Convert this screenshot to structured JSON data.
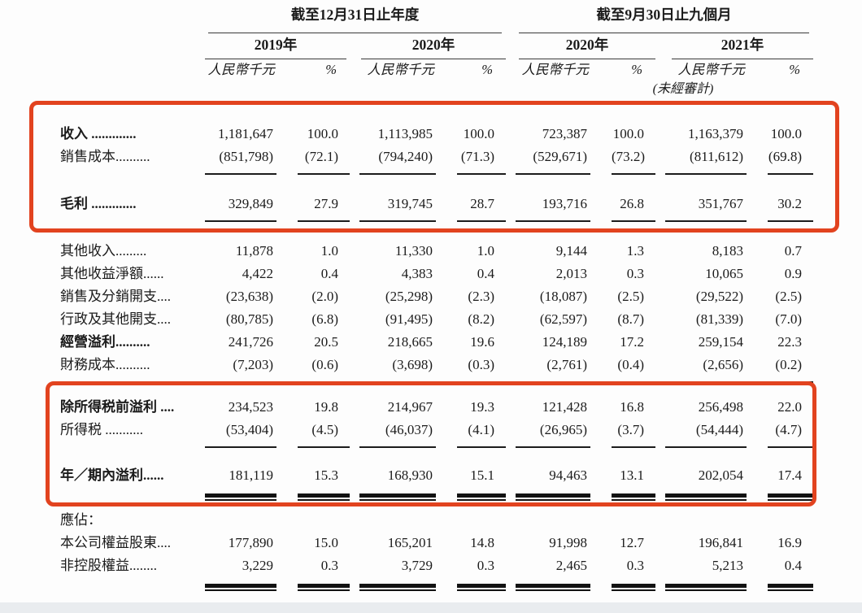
{
  "page": {
    "background": "#fdfdfd",
    "footer_strip_color": "#e9ecef",
    "highlight_color": "#e2431f"
  },
  "columns": {
    "period1": {
      "title": "截至12月31日止年度",
      "years": [
        "2019年",
        "2020年"
      ]
    },
    "period2": {
      "title": "截至9月30日止九個月",
      "years": [
        "2020年",
        "2021年"
      ]
    },
    "unit": "人民幣千元",
    "percent": "%",
    "unaudited": "(未經審計)"
  },
  "table": {
    "rows": [
      {
        "label": "收入 .............",
        "bold": true,
        "underline": "none",
        "values": [
          "1,181,647",
          "100.0",
          "1,113,985",
          "100.0",
          "723,387",
          "100.0",
          "1,163,379",
          "100.0"
        ]
      },
      {
        "label": "銷售成本..........",
        "bold": false,
        "underline": "single",
        "values": [
          "(851,798)",
          "(72.1)",
          "(794,240)",
          "(71.3)",
          "(529,671)",
          "(73.2)",
          "(811,612)",
          "(69.8)"
        ]
      },
      {
        "label": "毛利 .............",
        "bold": true,
        "underline": "single",
        "values": [
          "329,849",
          "27.9",
          "319,745",
          "28.7",
          "193,716",
          "26.8",
          "351,767",
          "30.2"
        ]
      },
      {
        "label": "其他收入.........",
        "bold": false,
        "underline": "none",
        "values": [
          "11,878",
          "1.0",
          "11,330",
          "1.0",
          "9,144",
          "1.3",
          "8,183",
          "0.7"
        ]
      },
      {
        "label": "其他收益淨額......",
        "bold": false,
        "underline": "none",
        "values": [
          "4,422",
          "0.4",
          "4,383",
          "0.4",
          "2,013",
          "0.3",
          "10,065",
          "0.9"
        ]
      },
      {
        "label": "銷售及分銷開支....",
        "bold": false,
        "underline": "none",
        "values": [
          "(23,638)",
          "(2.0)",
          "(25,298)",
          "(2.3)",
          "(18,087)",
          "(2.5)",
          "(29,522)",
          "(2.5)"
        ]
      },
      {
        "label": "行政及其他開支....",
        "bold": false,
        "underline": "none",
        "values": [
          "(80,785)",
          "(6.8)",
          "(91,495)",
          "(8.2)",
          "(62,597)",
          "(8.7)",
          "(81,339)",
          "(7.0)"
        ]
      },
      {
        "label": "經營溢利..........",
        "bold": true,
        "underline": "none",
        "values": [
          "241,726",
          "20.5",
          "218,665",
          "19.6",
          "124,189",
          "17.2",
          "259,154",
          "22.3"
        ]
      },
      {
        "label": "財務成本..........",
        "bold": false,
        "underline": "single",
        "values": [
          "(7,203)",
          "(0.6)",
          "(3,698)",
          "(0.3)",
          "(2,761)",
          "(0.4)",
          "(2,656)",
          "(0.2)"
        ]
      },
      {
        "label": "除所得税前溢利 ....",
        "bold": true,
        "underline": "none",
        "values": [
          "234,523",
          "19.8",
          "214,967",
          "19.3",
          "121,428",
          "16.8",
          "256,498",
          "22.0"
        ]
      },
      {
        "label": "所得税 ...........",
        "bold": false,
        "underline": "single",
        "values": [
          "(53,404)",
          "(4.5)",
          "(46,037)",
          "(4.1)",
          "(26,965)",
          "(3.7)",
          "(54,444)",
          "(4.7)"
        ]
      },
      {
        "label": "年／期內溢利......",
        "bold": true,
        "underline": "double",
        "values": [
          "181,119",
          "15.3",
          "168,930",
          "15.1",
          "94,463",
          "13.1",
          "202,054",
          "17.4"
        ]
      },
      {
        "label": "應佔：",
        "bold": false,
        "underline": "none",
        "section": true,
        "values": []
      },
      {
        "label": "本公司權益股東....",
        "bold": false,
        "underline": "none",
        "values": [
          "177,890",
          "15.0",
          "165,201",
          "14.8",
          "91,998",
          "12.7",
          "196,841",
          "16.9"
        ]
      },
      {
        "label": "非控股權益........",
        "bold": false,
        "underline": "double",
        "values": [
          "3,229",
          "0.3",
          "3,729",
          "0.3",
          "2,465",
          "0.3",
          "5,213",
          "0.4"
        ]
      }
    ]
  }
}
